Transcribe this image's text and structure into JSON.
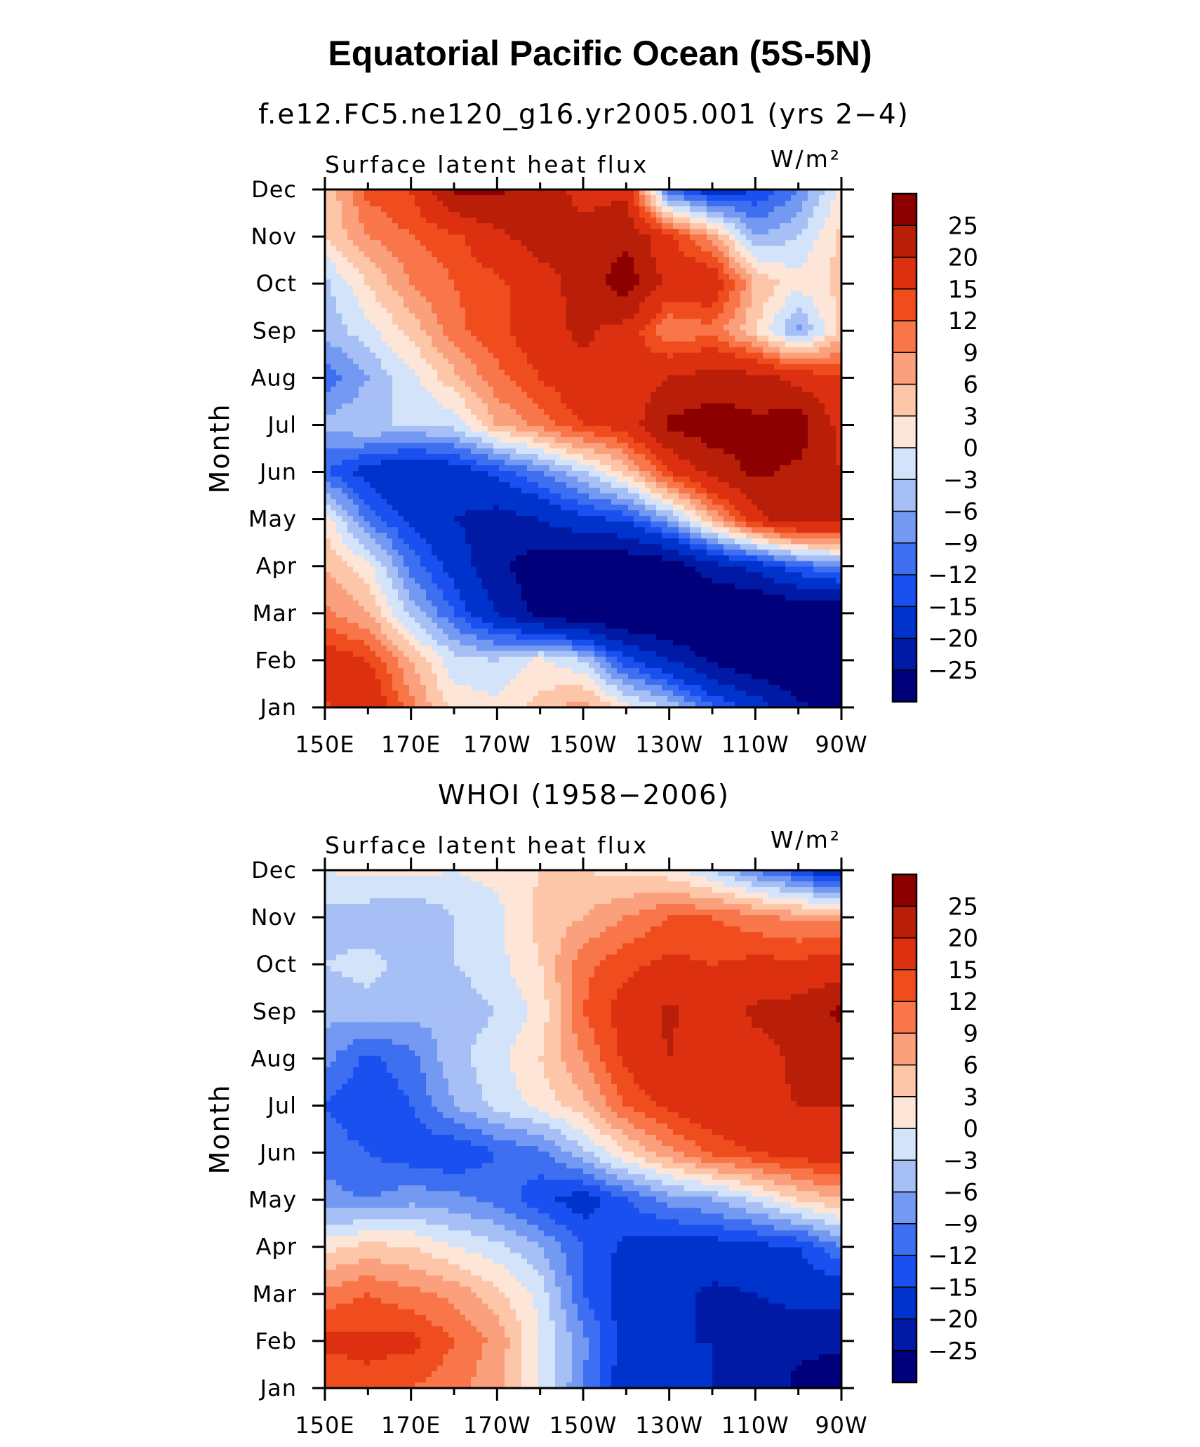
{
  "figure": {
    "title": "Equatorial Pacific Ocean (5S-5N)"
  },
  "chart_data": [
    {
      "type": "heatmap",
      "title": "f.e12.FC5.ne120_g16.yr2005.001 (yrs 2−4)",
      "left_label": "Surface  latent  heat  flux",
      "units": "W/m²",
      "xlabel": "",
      "ylabel": "Month",
      "x_tick_labels": [
        "150E",
        "170E",
        "170W",
        "150W",
        "130W",
        "110W",
        "90W"
      ],
      "y_tick_labels": [
        "Jan",
        "Feb",
        "Mar",
        "Apr",
        "May",
        "Jun",
        "Jul",
        "Aug",
        "Sep",
        "Oct",
        "Nov",
        "Dec"
      ],
      "x_range_deg_east": [
        150,
        270
      ],
      "longitudes": [
        150,
        160,
        170,
        180,
        190,
        200,
        210,
        220,
        230,
        240,
        250,
        260,
        270
      ],
      "colorbar_levels": [
        -25,
        -20,
        -15,
        -12,
        -9,
        -6,
        -3,
        0,
        3,
        6,
        9,
        12,
        15,
        20,
        25
      ],
      "colorbar_colors": [
        "#00007a",
        "#001aa6",
        "#0033cc",
        "#1a50f0",
        "#3d6ff0",
        "#7399f2",
        "#a6bff5",
        "#d2e3fa",
        "#fde6d8",
        "#fdc6a8",
        "#fba07c",
        "#f8764a",
        "#ef4d1e",
        "#dc3010",
        "#b81e08",
        "#8c0000"
      ],
      "rows": [
        [
          14,
          20,
          10,
          2,
          1,
          4,
          8,
          1,
          -3,
          -11,
          -17,
          -24,
          -28
        ],
        [
          18,
          15,
          6,
          -2,
          -3,
          1,
          -3,
          -14,
          -20,
          -26,
          -30,
          -30,
          -30
        ],
        [
          10,
          6,
          -4,
          -12,
          -20,
          -27,
          -30,
          -32,
          -32,
          -32,
          -32,
          -30,
          -30
        ],
        [
          6,
          1,
          -10,
          -17,
          -24,
          -28,
          -30,
          -30,
          -28,
          -22,
          -18,
          -12,
          -8
        ],
        [
          2,
          -10,
          -16,
          -20,
          -22,
          -20,
          -16,
          -14,
          -6,
          6,
          18,
          24,
          22
        ],
        [
          -12,
          -17,
          -20,
          -18,
          -14,
          -9,
          -3,
          4,
          15,
          22,
          26,
          24,
          20
        ],
        [
          -5,
          -3,
          -3,
          -2,
          6,
          10,
          15,
          17,
          26,
          28,
          26,
          28,
          18
        ],
        [
          -11,
          -6,
          -1,
          5,
          11,
          15,
          19,
          16,
          20,
          22,
          22,
          18,
          16
        ],
        [
          -5,
          -1,
          4,
          11,
          14,
          18,
          21,
          18,
          9,
          11,
          3,
          -7,
          4
        ],
        [
          -4,
          3,
          9,
          12,
          14,
          18,
          22,
          28,
          18,
          19,
          6,
          1,
          4
        ],
        [
          3,
          9,
          12,
          14,
          19,
          22,
          22,
          24,
          16,
          8,
          -6,
          -3,
          4
        ],
        [
          3,
          13,
          15,
          26,
          26,
          23,
          18,
          19,
          -11,
          -18,
          -15,
          -9,
          1
        ]
      ]
    },
    {
      "type": "heatmap",
      "title": "WHOI (1958−2006)",
      "left_label": "Surface  latent  heat  flux",
      "units": "W/m²",
      "xlabel": "",
      "ylabel": "Month",
      "x_tick_labels": [
        "150E",
        "170E",
        "170W",
        "150W",
        "130W",
        "110W",
        "90W"
      ],
      "y_tick_labels": [
        "Jan",
        "Feb",
        "Mar",
        "Apr",
        "May",
        "Jun",
        "Jul",
        "Aug",
        "Sep",
        "Oct",
        "Nov",
        "Dec"
      ],
      "x_range_deg_east": [
        150,
        270
      ],
      "longitudes": [
        150,
        160,
        170,
        180,
        190,
        200,
        210,
        220,
        230,
        240,
        250,
        260,
        270
      ],
      "colorbar_levels": [
        -25,
        -20,
        -15,
        -12,
        -9,
        -6,
        -3,
        0,
        3,
        6,
        9,
        12,
        15,
        20,
        25
      ],
      "colorbar_colors": [
        "#00007a",
        "#001aa6",
        "#0033cc",
        "#1a50f0",
        "#3d6ff0",
        "#7399f2",
        "#a6bff5",
        "#d2e3fa",
        "#fde6d8",
        "#fdc6a8",
        "#fba07c",
        "#f8764a",
        "#ef4d1e",
        "#dc3010",
        "#b81e08",
        "#8c0000"
      ],
      "rows": [
        [
          12,
          14,
          12,
          10,
          7,
          0,
          -9,
          -18,
          -20,
          -20,
          -22,
          -26,
          -28
        ],
        [
          16,
          16,
          16,
          12,
          8,
          0,
          -8,
          -17,
          -20,
          -20,
          -24,
          -24,
          -24
        ],
        [
          10,
          12,
          10,
          8,
          4,
          -1,
          -12,
          -17,
          -18,
          -21,
          -20,
          -18,
          -18
        ],
        [
          2,
          4,
          3,
          0,
          -2,
          -6,
          -12,
          -16,
          -17,
          -17,
          -16,
          -15,
          -9
        ],
        [
          -8,
          -9,
          -7,
          -8,
          -10,
          -14,
          -17,
          -12,
          -8,
          -6,
          -2,
          3,
          6
        ],
        [
          -10,
          -12,
          -14,
          -15,
          -12,
          -10,
          -4,
          3,
          8,
          13,
          15,
          17,
          18
        ],
        [
          -12,
          -15,
          -12,
          -6,
          -2,
          1,
          5,
          12,
          16,
          18,
          19,
          20,
          20
        ],
        [
          -8,
          -13,
          -10,
          -4,
          -1,
          3,
          9,
          16,
          20,
          16,
          18,
          21,
          22
        ],
        [
          -5,
          -4,
          -5,
          -5,
          -3,
          1,
          12,
          17,
          21,
          17,
          21,
          22,
          26
        ],
        [
          -3,
          -2,
          -4,
          -3,
          -1,
          3,
          11,
          14,
          16,
          15,
          16,
          16,
          17
        ],
        [
          -4,
          -5,
          -6,
          -3,
          -1,
          4,
          6,
          9,
          12,
          12,
          10,
          8,
          8
        ],
        [
          0,
          1,
          1,
          0,
          1,
          3,
          3,
          2,
          1,
          -3,
          -9,
          -14,
          -20
        ]
      ]
    }
  ]
}
